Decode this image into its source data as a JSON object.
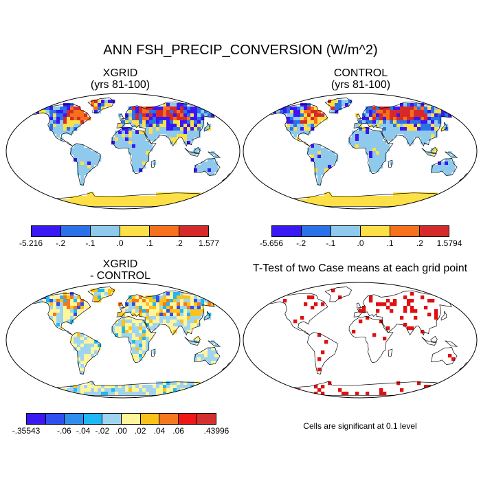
{
  "title": "ANN FSH_PRECIP_CONVERSION (W/m^2)",
  "chart_data": [
    {
      "type": "heatmap",
      "panel": "top-left",
      "title_line1": "XGRID",
      "title_line2": "(yrs 81-100)",
      "colorbar": {
        "colors": [
          "#3a17f5",
          "#2b72e8",
          "#8fcaec",
          "#fde047",
          "#f6711c",
          "#d62a2a"
        ],
        "tick_labels": [
          "-5.216",
          "-.2",
          "-.1",
          ".0",
          ".1",
          ".2",
          "1.577"
        ]
      }
    },
    {
      "type": "heatmap",
      "panel": "top-right",
      "title_line1": "CONTROL",
      "title_line2": "(yrs 81-100)",
      "colorbar": {
        "colors": [
          "#3a17f5",
          "#2b72e8",
          "#8fcaec",
          "#fde047",
          "#f6711c",
          "#d62a2a"
        ],
        "tick_labels": [
          "-5.656",
          "-.2",
          "-.1",
          ".0",
          ".1",
          ".2",
          "1.5794"
        ]
      }
    },
    {
      "type": "heatmap",
      "panel": "bottom-left",
      "title_line1": "XGRID",
      "title_line2": "- CONTROL",
      "colorbar": {
        "colors": [
          "#3a17f5",
          "#2f4ff0",
          "#2e8ef0",
          "#1fb8f5",
          "#9fd4f0",
          "#fff59a",
          "#fbc21a",
          "#f6781c",
          "#f21717",
          "#d43030"
        ],
        "tick_labels": [
          "-.35543",
          "-.06",
          "-.04",
          "-.02",
          ".00",
          ".02",
          ".04",
          ".06",
          ".43996"
        ]
      }
    },
    {
      "type": "heatmap",
      "panel": "bottom-right",
      "title_line1": "T-Test of two Case means at each grid point",
      "note": "Cells are significant at 0.1 level",
      "marker_color": "#e01010"
    }
  ]
}
